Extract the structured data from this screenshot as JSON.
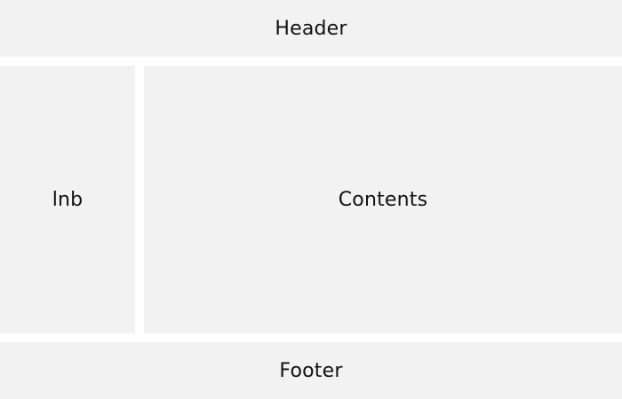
{
  "layout_regions": {
    "header": {
      "label": "Header"
    },
    "lnb": {
      "label": "lnb"
    },
    "contents": {
      "label": "Contents"
    },
    "footer": {
      "label": "Footer"
    }
  },
  "colors": {
    "region_background": "#f2f2f2",
    "page_background": "#ffffff",
    "text": "#111111"
  }
}
